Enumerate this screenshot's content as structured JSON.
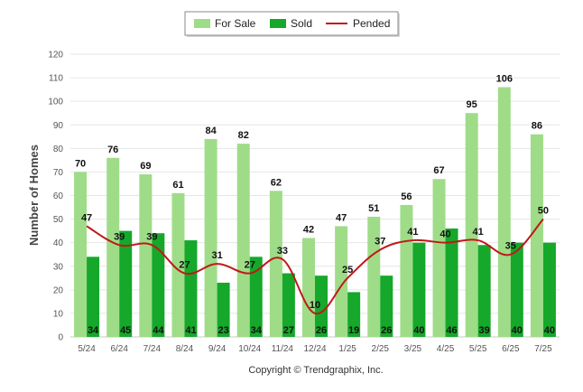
{
  "chart_data": {
    "type": "bar",
    "categories": [
      "5/24",
      "6/24",
      "7/24",
      "8/24",
      "9/24",
      "10/24",
      "11/24",
      "12/24",
      "1/25",
      "2/25",
      "3/25",
      "4/25",
      "5/25",
      "6/25",
      "7/25"
    ],
    "series": [
      {
        "name": "For Sale",
        "type": "bar",
        "color": "#9fdc88",
        "values": [
          70,
          76,
          69,
          61,
          84,
          82,
          62,
          42,
          47,
          51,
          56,
          67,
          95,
          106,
          86
        ]
      },
      {
        "name": "Sold",
        "type": "bar",
        "color": "#15a82a",
        "values": [
          34,
          45,
          44,
          41,
          23,
          34,
          27,
          26,
          19,
          26,
          40,
          46,
          39,
          40,
          40
        ]
      },
      {
        "name": "Pended",
        "type": "line",
        "color": "#c01818",
        "values": [
          47,
          39,
          39,
          27,
          31,
          27,
          33,
          10,
          25,
          37,
          41,
          40,
          41,
          35,
          50
        ]
      }
    ],
    "ylabel": "Number of Homes",
    "xlabel": "",
    "ylim": [
      0,
      120
    ],
    "yticks": [
      0,
      10,
      20,
      30,
      40,
      50,
      60,
      70,
      80,
      90,
      100,
      110,
      120
    ],
    "grid": true,
    "legend_position": "top-center"
  },
  "footer": {
    "copyright": "Copyright © Trendgraphix, Inc."
  }
}
